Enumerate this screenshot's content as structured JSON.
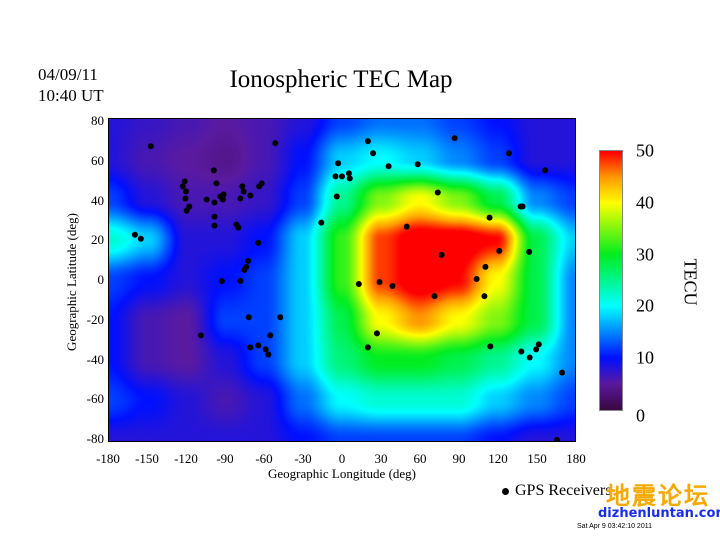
{
  "header": {
    "date": "04/09/11",
    "time": "10:40 UT",
    "title": "Ionospheric TEC Map"
  },
  "chart_data": {
    "type": "heatmap",
    "title": "Ionospheric TEC Map",
    "xlabel": "Geographic Longitude (deg)",
    "ylabel": "Geographic Latitude (deg)",
    "xlim": [
      -180,
      180
    ],
    "ylim": [
      -80,
      80
    ],
    "xticks": [
      "-180",
      "-150",
      "-120",
      "-90",
      "-60",
      "-30",
      "0",
      "30",
      "60",
      "90",
      "120",
      "150",
      "180"
    ],
    "yticks": [
      "80",
      "60",
      "40",
      "20",
      "0",
      "-20",
      "-40",
      "-60",
      "-80"
    ],
    "grid_lon": [
      -180,
      -150,
      -120,
      -90,
      -60,
      -30,
      0,
      30,
      60,
      90,
      120,
      150,
      180
    ],
    "grid_lat": [
      80,
      60,
      40,
      20,
      0,
      -20,
      -40,
      -60,
      -80
    ],
    "tec_values": [
      [
        8,
        7,
        6,
        5,
        6,
        8,
        12,
        14,
        14,
        12,
        10,
        8,
        8
      ],
      [
        8,
        6,
        5,
        4,
        6,
        10,
        18,
        20,
        18,
        15,
        12,
        8,
        8
      ],
      [
        12,
        8,
        6,
        6,
        7,
        12,
        25,
        35,
        40,
        35,
        28,
        15,
        12
      ],
      [
        22,
        18,
        8,
        8,
        10,
        18,
        32,
        48,
        52,
        52,
        50,
        28,
        18
      ],
      [
        12,
        10,
        8,
        10,
        12,
        18,
        32,
        48,
        52,
        50,
        40,
        28,
        15
      ],
      [
        10,
        6,
        5,
        12,
        12,
        18,
        28,
        40,
        45,
        40,
        35,
        28,
        15
      ],
      [
        10,
        6,
        5,
        8,
        12,
        18,
        26,
        30,
        30,
        28,
        25,
        20,
        15
      ],
      [
        12,
        10,
        8,
        6,
        8,
        14,
        20,
        22,
        22,
        22,
        18,
        15,
        12
      ],
      [
        8,
        8,
        8,
        8,
        8,
        10,
        12,
        12,
        12,
        12,
        10,
        8,
        8
      ]
    ],
    "colorbar": {
      "label": "TECU",
      "range": [
        0,
        50
      ],
      "ticks": [
        "0",
        "10",
        "20",
        "30",
        "40",
        "50"
      ],
      "stops": [
        [
          0,
          "#3a0840"
        ],
        [
          5,
          "#5a1aa0"
        ],
        [
          10,
          "#0010ff"
        ],
        [
          20,
          "#00ffff"
        ],
        [
          30,
          "#00ee20"
        ],
        [
          40,
          "#ffff00"
        ],
        [
          45,
          "#ff9900"
        ],
        [
          50,
          "#ff0000"
        ]
      ]
    },
    "gps_receivers": [
      [
        -147.7,
        66.5
      ],
      [
        -121.5,
        49
      ],
      [
        -123,
        46.5
      ],
      [
        -120.5,
        44
      ],
      [
        -121,
        40.5
      ],
      [
        -118,
        36.5
      ],
      [
        -120,
        34.5
      ],
      [
        -99,
        54.5
      ],
      [
        -97,
        48
      ],
      [
        -104.6,
        40
      ],
      [
        -98.5,
        38.5
      ],
      [
        -94,
        41.5
      ],
      [
        -92,
        40
      ],
      [
        -91.5,
        42.5
      ],
      [
        -98.5,
        31.5
      ],
      [
        -98.5,
        27
      ],
      [
        -81.5,
        27.5
      ],
      [
        -78.5,
        40.5
      ],
      [
        -77,
        46.5
      ],
      [
        -76,
        44
      ],
      [
        -70.8,
        42
      ],
      [
        -64,
        46.5
      ],
      [
        -62,
        48
      ],
      [
        -64.6,
        18.5
      ],
      [
        -51.5,
        68
      ],
      [
        -80,
        26
      ],
      [
        -160,
        22.5
      ],
      [
        -155.4,
        20.5
      ],
      [
        -92.8,
        -0.5
      ],
      [
        -78.5,
        -0.5
      ],
      [
        -75.4,
        5
      ],
      [
        -74,
        6.5
      ],
      [
        -72.5,
        9.5
      ],
      [
        -72,
        -18.5
      ],
      [
        -70.8,
        -33.5
      ],
      [
        -64.6,
        -32.5
      ],
      [
        -59,
        -34.5
      ],
      [
        -56.9,
        -37
      ],
      [
        -55.4,
        -27.5
      ],
      [
        -47.7,
        -18.5
      ],
      [
        -109,
        -27.5
      ],
      [
        -16,
        28.5
      ],
      [
        -4,
        41.5
      ],
      [
        -5,
        51.5
      ],
      [
        0,
        51.5
      ],
      [
        5.4,
        53
      ],
      [
        6,
        50.5
      ],
      [
        -3,
        58
      ],
      [
        20,
        69
      ],
      [
        24,
        63
      ],
      [
        36,
        56.5
      ],
      [
        58.5,
        57.5
      ],
      [
        87,
        70.5
      ],
      [
        74,
        43.5
      ],
      [
        129,
        63
      ],
      [
        157,
        54.5
      ],
      [
        138,
        36.5
      ],
      [
        139.5,
        36.5
      ],
      [
        114,
        31
      ],
      [
        144.6,
        14
      ],
      [
        121.5,
        14.5
      ],
      [
        110.8,
        6.5
      ],
      [
        104,
        0.5
      ],
      [
        110,
        -8
      ],
      [
        71.5,
        -8
      ],
      [
        77,
        12.5
      ],
      [
        50,
        26.5
      ],
      [
        13,
        -2
      ],
      [
        29,
        -1
      ],
      [
        39,
        -3
      ],
      [
        27,
        -26.5
      ],
      [
        20,
        -33.5
      ],
      [
        114.6,
        -33
      ],
      [
        138.5,
        -35.5
      ],
      [
        145,
        -38.5
      ],
      [
        150,
        -34.5
      ],
      [
        152,
        -32
      ],
      [
        170,
        -46
      ],
      [
        166,
        -79.5
      ]
    ],
    "legend": "GPS Receivers",
    "legend_position": "bottom-right"
  },
  "watermark": {
    "cn": "地震论坛",
    "url": "dizhenluntan.com"
  },
  "footer": {
    "stamp": "Sat Apr  9 03:42:10 2011"
  }
}
